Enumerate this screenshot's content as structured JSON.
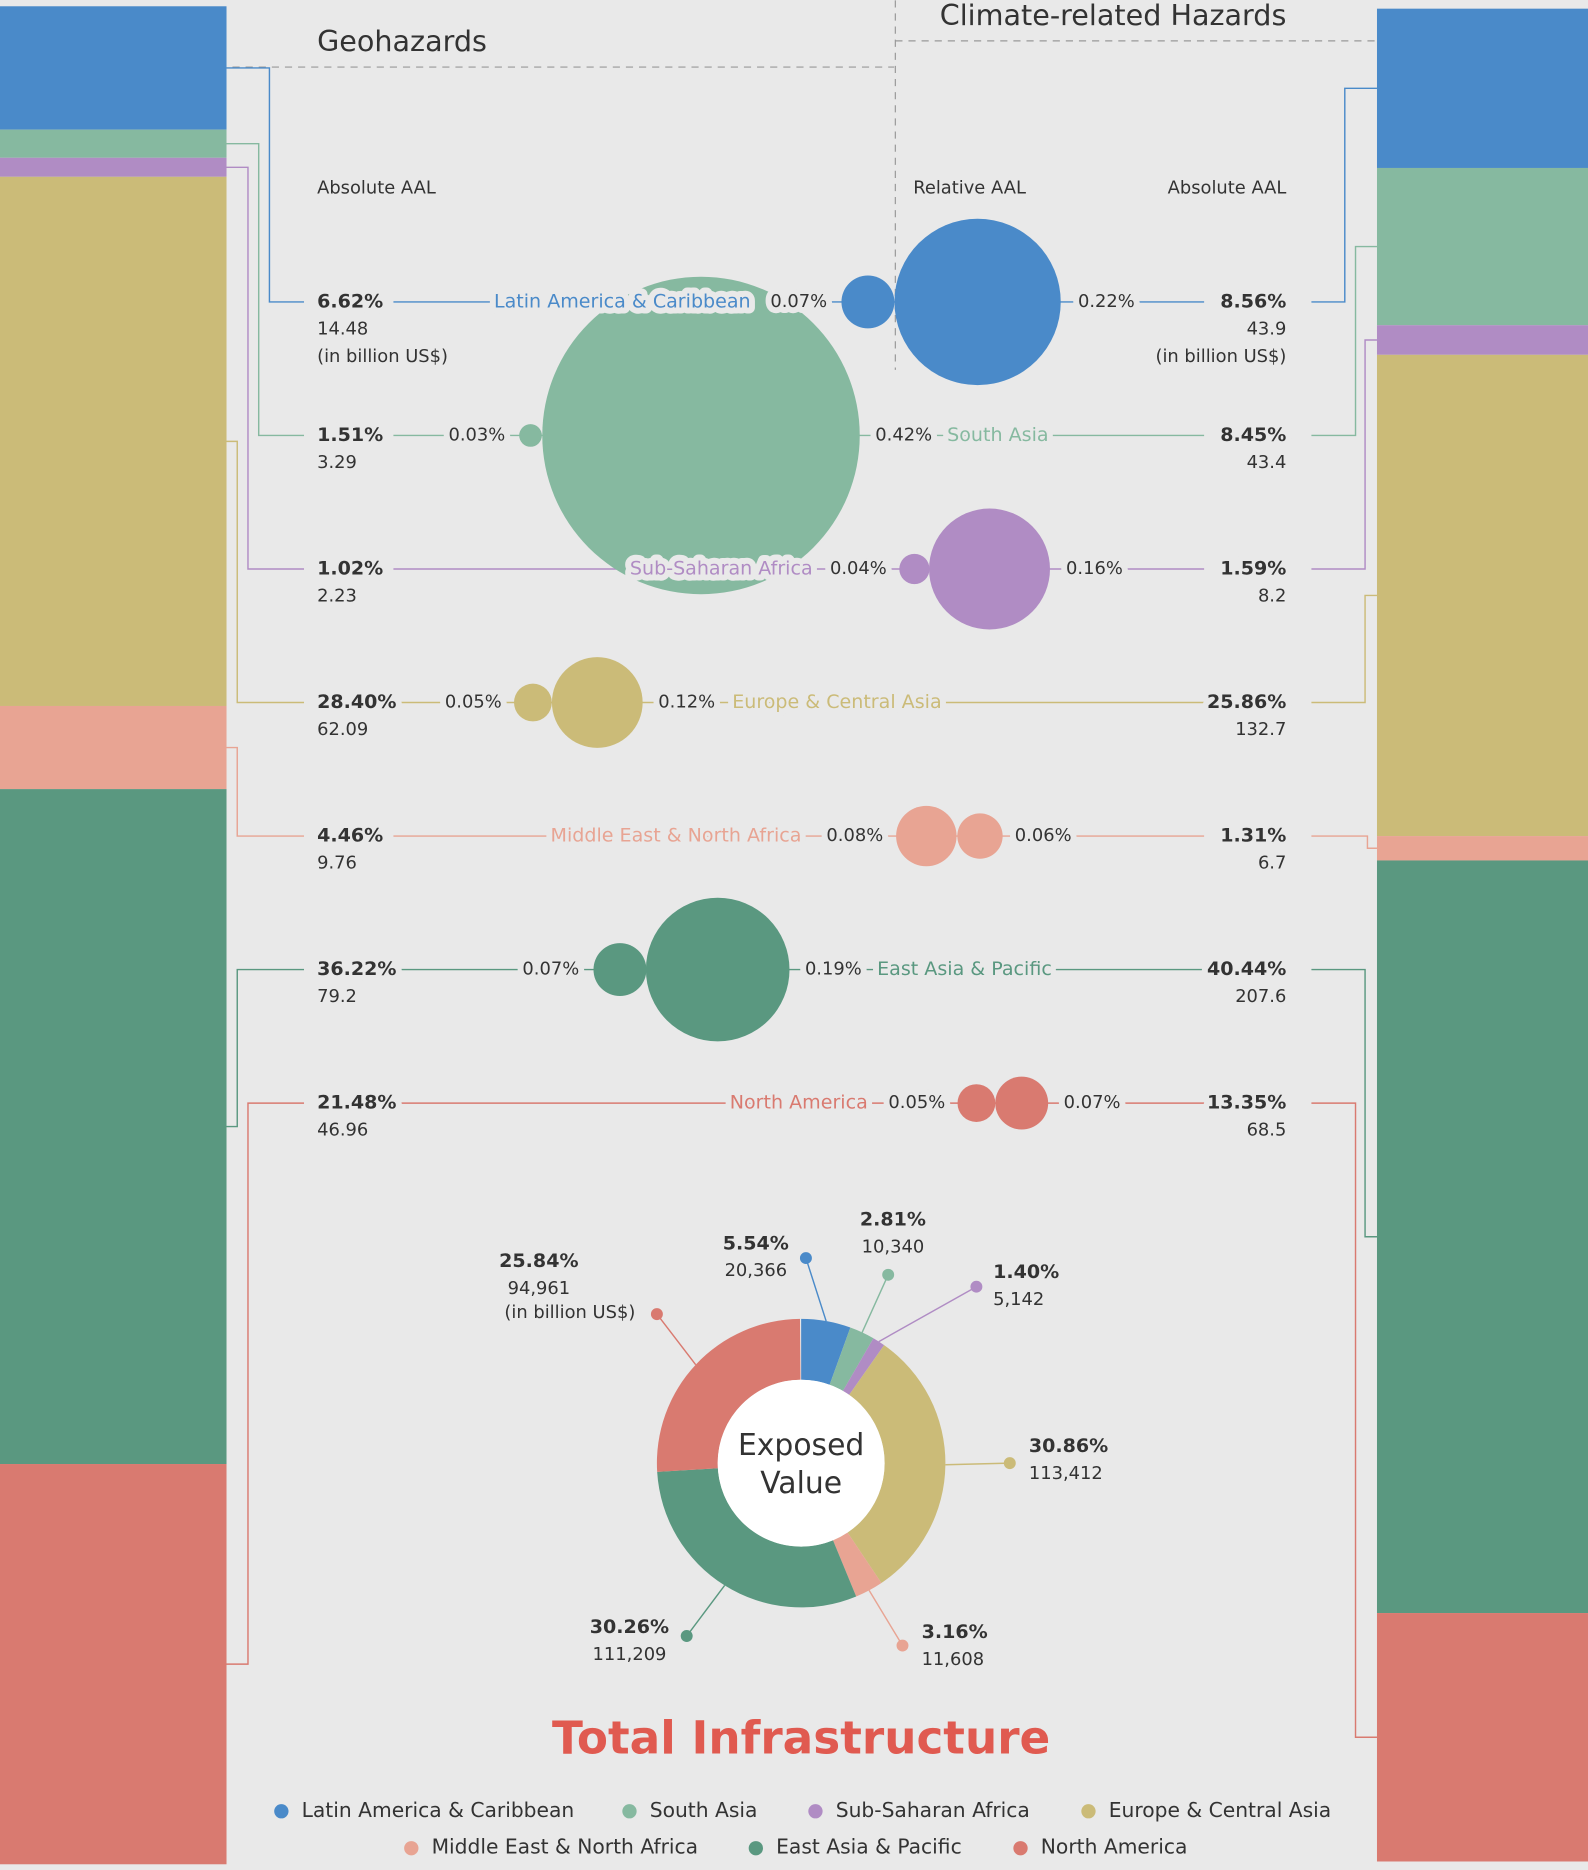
{
  "chart_data": {
    "type": "bubble_donut",
    "title": "Total Infrastructure",
    "section_labels": [
      "Geohazards",
      "Climate-related Hazards"
    ],
    "column_labels": [
      "Absolute AAL",
      "Relative AAL",
      "Absolute AAL"
    ],
    "unit_label": "(in billion US$)",
    "donut_center": [
      "Exposed",
      "Value"
    ],
    "categories": [
      "Latin America & Caribbean",
      "South Asia",
      "Sub-Saharan Africa",
      "Europe & Central Asia",
      "Middle East & North Africa",
      "East Asia & Pacific",
      "North America"
    ],
    "colors": [
      "#4a8ac9",
      "#86b9a0",
      "#b08cc4",
      "#cbbb78",
      "#e8a493",
      "#5a9880",
      "#d97a70"
    ],
    "geo_share": [
      6.62,
      1.51,
      1.02,
      28.4,
      4.46,
      36.22,
      21.48
    ],
    "geo_share_labels": [
      "6.62%",
      "1.51%",
      "1.02%",
      "28.40%",
      "4.46%",
      "36.22%",
      "21.48%"
    ],
    "geo_aal": [
      14.48,
      3.29,
      2.23,
      62.09,
      9.76,
      79.2,
      46.96
    ],
    "geo_relative": [
      0.07,
      0.03,
      0.04,
      0.05,
      0.08,
      0.07,
      0.05
    ],
    "geo_relative_labels": [
      "0.07%",
      "0.03%",
      "0.04%",
      "0.05%",
      "0.08%",
      "0.07%",
      "0.05%"
    ],
    "climate_relative": [
      0.22,
      0.42,
      0.16,
      0.12,
      0.06,
      0.19,
      0.07
    ],
    "climate_relative_labels": [
      "0.22%",
      "0.42%",
      "0.16%",
      "0.12%",
      "0.06%",
      "0.19%",
      "0.07%"
    ],
    "climate_share": [
      8.56,
      8.45,
      1.59,
      25.86,
      1.31,
      40.44,
      13.35
    ],
    "climate_share_labels": [
      "8.56%",
      "8.45%",
      "1.59%",
      "25.86%",
      "1.31%",
      "40.44%",
      "13.35%"
    ],
    "climate_aal": [
      43.9,
      43.4,
      8.2,
      132.7,
      6.7,
      207.6,
      68.5
    ],
    "exposed_share": [
      5.54,
      2.81,
      1.4,
      30.86,
      3.16,
      30.26,
      25.84
    ],
    "exposed_share_labels": [
      "5.54%",
      "2.81%",
      "1.40%",
      "30.86%",
      "3.16%",
      "30.26%",
      "25.84%"
    ],
    "exposed_value": [
      20366,
      10340,
      5142,
      113412,
      11608,
      111209,
      94961
    ],
    "exposed_value_labels": [
      "20,366",
      "10,340",
      "5,142",
      "113,412",
      "11,608",
      "111,209",
      "94,961"
    ]
  }
}
